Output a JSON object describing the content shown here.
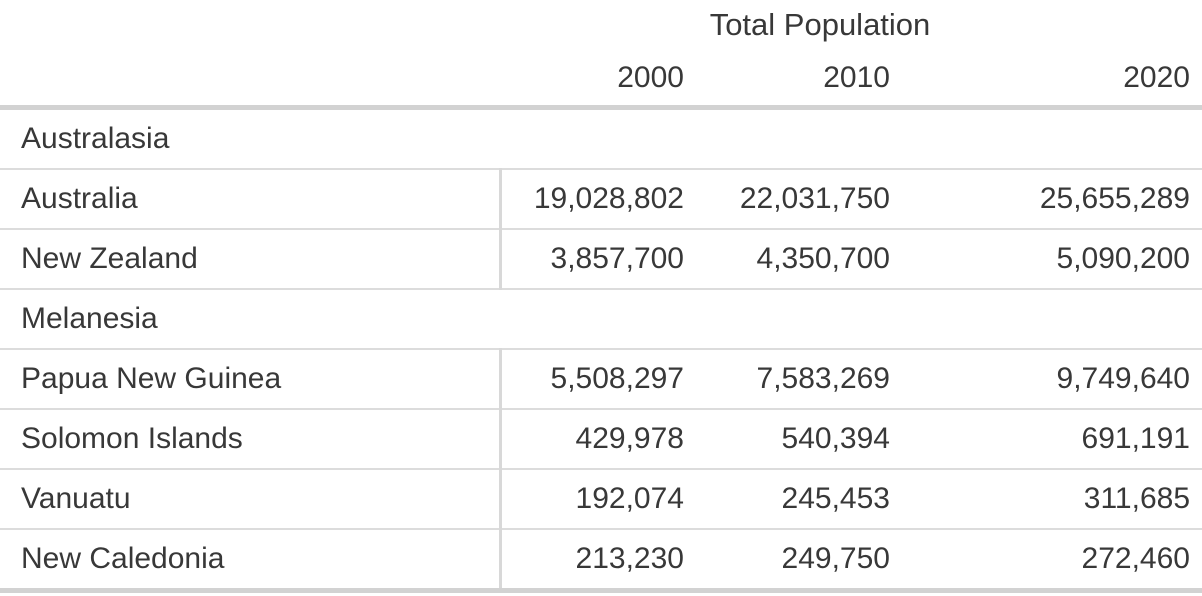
{
  "chart_data": {
    "type": "table",
    "title": "Total Population",
    "year_columns": [
      "2000",
      "2010",
      "2020"
    ],
    "sections": [
      {
        "name": "Australasia",
        "rows": [
          {
            "label": "Australia",
            "values": [
              "19,028,802",
              "22,031,750",
              "25,655,289"
            ],
            "values_numeric": [
              19028802,
              22031750,
              25655289
            ]
          },
          {
            "label": "New Zealand",
            "values": [
              "3,857,700",
              "4,350,700",
              "5,090,200"
            ],
            "values_numeric": [
              3857700,
              4350700,
              5090200
            ]
          }
        ]
      },
      {
        "name": "Melanesia",
        "rows": [
          {
            "label": "Papua New Guinea",
            "values": [
              "5,508,297",
              "7,583,269",
              "9,749,640"
            ],
            "values_numeric": [
              5508297,
              7583269,
              9749640
            ]
          },
          {
            "label": "Solomon Islands",
            "values": [
              "429,978",
              "540,394",
              "691,191"
            ],
            "values_numeric": [
              429978,
              540394,
              691191
            ]
          },
          {
            "label": "Vanuatu",
            "values": [
              "192,074",
              "245,453",
              "311,685"
            ],
            "values_numeric": [
              192074,
              245453,
              311685
            ]
          },
          {
            "label": "New Caledonia",
            "values": [
              "213,230",
              "249,750",
              "272,460"
            ],
            "values_numeric": [
              213230,
              249750,
              272460
            ]
          }
        ]
      }
    ],
    "layout": {
      "row_label_column_header": "",
      "value_alignment": "right",
      "grid": "horizontal-rules-with-name-column-divider"
    }
  },
  "colors": {
    "background": "#ffffff",
    "text": "#383838",
    "border_heavy": "#d2d2d2",
    "border_light": "#dcdcdc",
    "name_column_divider": "#d8d8d8"
  }
}
